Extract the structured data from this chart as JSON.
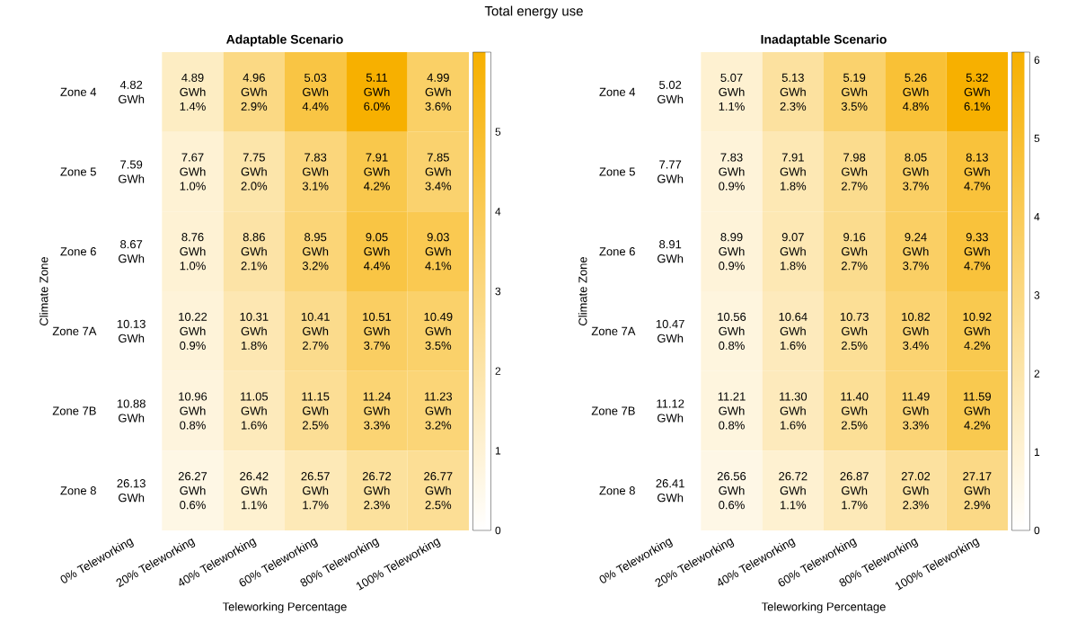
{
  "chart_data": [
    {
      "type": "heatmap",
      "title": "Adaptable Scenario",
      "xlabel": "Teleworking Percentage",
      "ylabel": "Climate Zone",
      "annotations": [
        "Total energy use"
      ],
      "color": "#f7b000",
      "categories": [
        "0% Teleworking",
        "20% Teleworking",
        "40% Teleworking",
        "60% Teleworking",
        "80% Teleworking",
        "100% Teleworking"
      ],
      "y_categories": [
        "Zone 4",
        "Zone 5",
        "Zone 6",
        "Zone 7A",
        "Zone 7B",
        "Zone 8"
      ],
      "cells": [
        [
          null,
          1.4,
          2.9,
          4.4,
          6.0,
          3.6
        ],
        [
          null,
          1.0,
          2.0,
          3.1,
          4.2,
          3.4
        ],
        [
          null,
          1.0,
          2.1,
          3.2,
          4.4,
          4.1
        ],
        [
          null,
          0.9,
          1.8,
          2.7,
          3.7,
          3.5
        ],
        [
          null,
          0.8,
          1.6,
          2.5,
          3.3,
          3.2
        ],
        [
          null,
          0.6,
          1.1,
          1.7,
          2.3,
          2.5
        ]
      ],
      "cell_labels": [
        [
          "4.82 GWh",
          "4.89 GWh 1.4%",
          "4.96 GWh 2.9%",
          "5.03 GWh 4.4%",
          "5.11 GWh 6.0%",
          "4.99 GWh 3.6%"
        ],
        [
          "7.59 GWh",
          "7.67 GWh 1.0%",
          "7.75 GWh 2.0%",
          "7.83 GWh 3.1%",
          "7.91 GWh 4.2%",
          "7.85 GWh 3.4%"
        ],
        [
          "8.67 GWh",
          "8.76 GWh 1.0%",
          "8.86 GWh 2.1%",
          "8.95 GWh 3.2%",
          "9.05 GWh 4.4%",
          "9.03 GWh 4.1%"
        ],
        [
          "10.13 GWh",
          "10.22 GWh 0.9%",
          "10.31 GWh 1.8%",
          "10.41 GWh 2.7%",
          "10.51 GWh 3.7%",
          "10.49 GWh 3.5%"
        ],
        [
          "10.88 GWh",
          "10.96 GWh 0.8%",
          "11.05 GWh 1.6%",
          "11.15 GWh 2.5%",
          "11.24 GWh 3.3%",
          "11.23 GWh 3.2%"
        ],
        [
          "26.13 GWh",
          "26.27 GWh 0.6%",
          "26.42 GWh 1.1%",
          "26.57 GWh 1.7%",
          "26.72 GWh 2.3%",
          "26.77 GWh 2.5%"
        ]
      ],
      "clim": [
        0,
        6.0
      ],
      "cticks": [
        0,
        1,
        2,
        3,
        4,
        5
      ]
    },
    {
      "type": "heatmap",
      "title": "Inadaptable Scenario",
      "xlabel": "Teleworking Percentage",
      "ylabel": "Climate Zone",
      "color": "#f7b000",
      "categories": [
        "0% Teleworking",
        "20% Teleworking",
        "40% Teleworking",
        "60% Teleworking",
        "80% Teleworking",
        "100% Teleworking"
      ],
      "y_categories": [
        "Zone 4",
        "Zone 5",
        "Zone 6",
        "Zone 7A",
        "Zone 7B",
        "Zone 8"
      ],
      "cells": [
        [
          null,
          1.1,
          2.3,
          3.5,
          4.8,
          6.1
        ],
        [
          null,
          0.9,
          1.8,
          2.7,
          3.7,
          4.7
        ],
        [
          null,
          0.9,
          1.8,
          2.7,
          3.7,
          4.7
        ],
        [
          null,
          0.8,
          1.6,
          2.5,
          3.4,
          4.2
        ],
        [
          null,
          0.8,
          1.6,
          2.5,
          3.3,
          4.2
        ],
        [
          null,
          0.6,
          1.1,
          1.7,
          2.3,
          2.9
        ]
      ],
      "cell_labels": [
        [
          "5.02 GWh",
          "5.07 GWh 1.1%",
          "5.13 GWh 2.3%",
          "5.19 GWh 3.5%",
          "5.26 GWh 4.8%",
          "5.32 GWh 6.1%"
        ],
        [
          "7.77 GWh",
          "7.83 GWh 0.9%",
          "7.91 GWh 1.8%",
          "7.98 GWh 2.7%",
          "8.05 GWh 3.7%",
          "8.13 GWh 4.7%"
        ],
        [
          "8.91 GWh",
          "8.99 GWh 0.9%",
          "9.07 GWh 1.8%",
          "9.16 GWh 2.7%",
          "9.24 GWh 3.7%",
          "9.33 GWh 4.7%"
        ],
        [
          "10.47 GWh",
          "10.56 GWh 0.8%",
          "10.64 GWh 1.6%",
          "10.73 GWh 2.5%",
          "10.82 GWh 3.4%",
          "10.92 GWh 4.2%"
        ],
        [
          "11.12 GWh",
          "11.21 GWh 0.8%",
          "11.30 GWh 1.6%",
          "11.40 GWh 2.5%",
          "11.49 GWh 3.3%",
          "11.59 GWh 4.2%"
        ],
        [
          "26.41 GWh",
          "26.56 GWh 0.6%",
          "26.72 GWh 1.1%",
          "26.87 GWh 1.7%",
          "27.02 GWh 2.3%",
          "27.17 GWh 2.9%"
        ]
      ],
      "clim": [
        0,
        6.1
      ],
      "cticks": [
        0,
        1,
        2,
        3,
        4,
        5,
        6
      ]
    }
  ]
}
